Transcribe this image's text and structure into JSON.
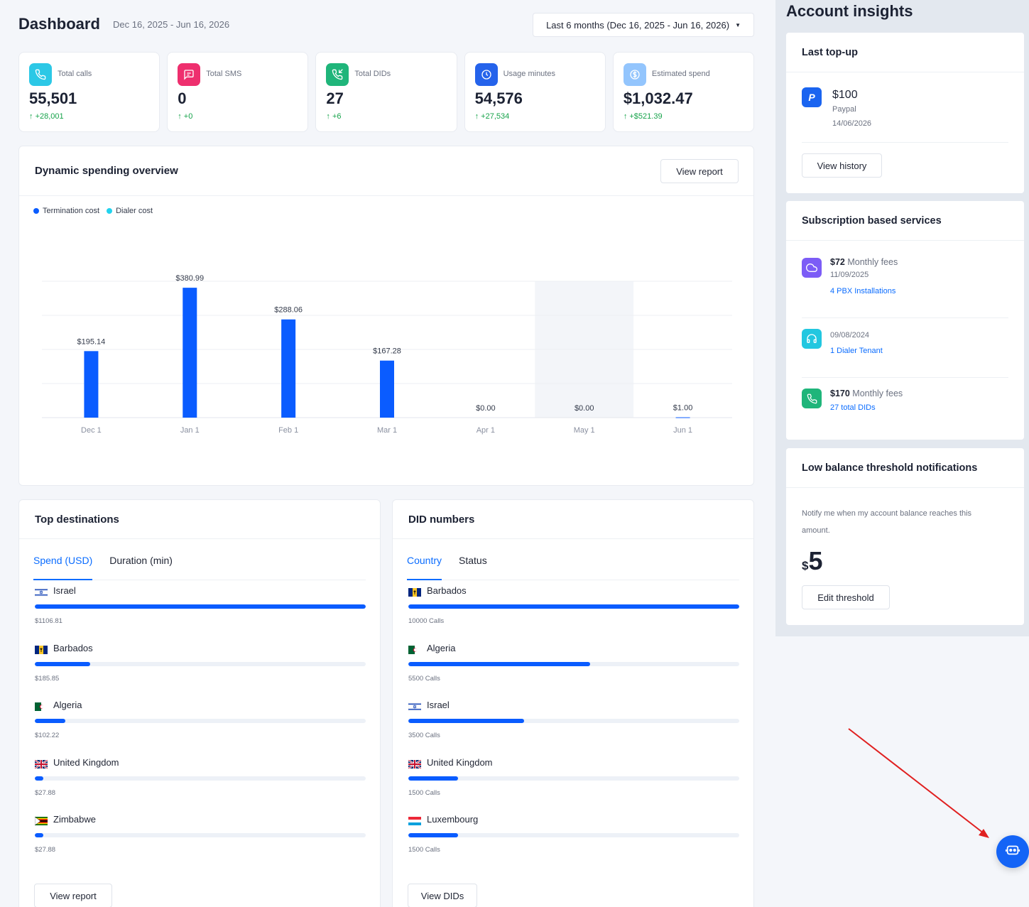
{
  "header": {
    "title": "Dashboard",
    "range": "Dec 16, 2025 - Jun 16, 2026",
    "range_select": "Last 6 months (Dec 16, 2025 - Jun 16, 2026)"
  },
  "stats": [
    {
      "label": "Total calls",
      "value": "55,501",
      "delta": "+28,001",
      "icon": "phone-icon",
      "color": "#2cc8e6"
    },
    {
      "label": "Total SMS",
      "value": "0",
      "delta": "+0",
      "icon": "message-icon",
      "color": "#ee2f6e"
    },
    {
      "label": "Total DIDs",
      "value": "27",
      "delta": "+6",
      "icon": "phone-incoming-icon",
      "color": "#1fb57a"
    },
    {
      "label": "Usage minutes",
      "value": "54,576",
      "delta": "+27,534",
      "icon": "clock-icon",
      "color": "#2563eb"
    },
    {
      "label": "Estimated spend",
      "value": "$1,032.47",
      "delta": "+$521.39",
      "icon": "dollar-icon",
      "color": "#93c5fd"
    }
  ],
  "spending": {
    "title": "Dynamic spending overview",
    "button": "View report",
    "legend": [
      {
        "label": "Termination cost",
        "color": "#0a5cff"
      },
      {
        "label": "Dialer cost",
        "color": "#22d3ee"
      }
    ]
  },
  "chart_data": {
    "type": "bar",
    "categories": [
      "Dec 1",
      "Jan 1",
      "Feb 1",
      "Mar 1",
      "Apr 1",
      "May 1",
      "Jun 1"
    ],
    "series": [
      {
        "name": "Termination cost",
        "values": [
          195.14,
          380.99,
          288.06,
          167.28,
          0,
          0,
          1.0
        ]
      }
    ],
    "labels": [
      "$195.14",
      "$380.99",
      "$288.06",
      "$167.28",
      "$0.00",
      "$0.00",
      "$1.00"
    ],
    "ylim": [
      0,
      400
    ],
    "grid": true,
    "highlight_category": "May 1"
  },
  "top_destinations": {
    "title": "Top destinations",
    "tabs": [
      "Spend (USD)",
      "Duration (min)"
    ],
    "button": "View report",
    "rows": [
      {
        "name": "Israel",
        "value_label": "$1106.81",
        "fraction": 1.0,
        "flag": "israel"
      },
      {
        "name": "Barbados",
        "value_label": "$185.85",
        "fraction": 0.168,
        "flag": "barbados"
      },
      {
        "name": "Algeria",
        "value_label": "$102.22",
        "fraction": 0.092,
        "flag": "algeria"
      },
      {
        "name": "United Kingdom",
        "value_label": "$27.88",
        "fraction": 0.025,
        "flag": "uk"
      },
      {
        "name": "Zimbabwe",
        "value_label": "$27.88",
        "fraction": 0.025,
        "flag": "zimbabwe"
      }
    ]
  },
  "did_numbers": {
    "title": "DID numbers",
    "tabs": [
      "Country",
      "Status"
    ],
    "button": "View DIDs",
    "rows": [
      {
        "name": "Barbados",
        "value_label": "10000 Calls",
        "fraction": 1.0,
        "flag": "barbados"
      },
      {
        "name": "Algeria",
        "value_label": "5500 Calls",
        "fraction": 0.55,
        "flag": "algeria"
      },
      {
        "name": "Israel",
        "value_label": "3500 Calls",
        "fraction": 0.35,
        "flag": "israel"
      },
      {
        "name": "United Kingdom",
        "value_label": "1500 Calls",
        "fraction": 0.15,
        "flag": "uk"
      },
      {
        "name": "Luxembourg",
        "value_label": "1500 Calls",
        "fraction": 0.15,
        "flag": "luxembourg"
      }
    ]
  },
  "insights": {
    "title": "Account insights",
    "last_topup": {
      "title": "Last top-up",
      "amount": "$100",
      "method": "Paypal",
      "date": "14/06/2026",
      "button": "View history"
    },
    "subscriptions": {
      "title": "Subscription based services",
      "items": [
        {
          "amount": "$72",
          "suffix": " Monthly fees",
          "date": "11/09/2025",
          "link": "4 PBX Installations",
          "icon": "cloud-icon",
          "color": "#7c5cf6"
        },
        {
          "amount": "",
          "suffix": "",
          "date": "09/08/2024",
          "link": "1 Dialer Tenant",
          "icon": "headset-icon",
          "color": "#22c7e0"
        },
        {
          "amount": "$170",
          "suffix": " Monthly fees",
          "date": "",
          "link": "27 total DIDs",
          "icon": "phone-icon",
          "color": "#1fb57a"
        }
      ]
    },
    "low_balance": {
      "title": "Low balance threshold notifications",
      "description": "Notify me when my account balance reaches this amount.",
      "currency": "$",
      "amount": "5",
      "button": "Edit threshold"
    }
  },
  "fab": {
    "icon": "chat-bot-icon"
  }
}
